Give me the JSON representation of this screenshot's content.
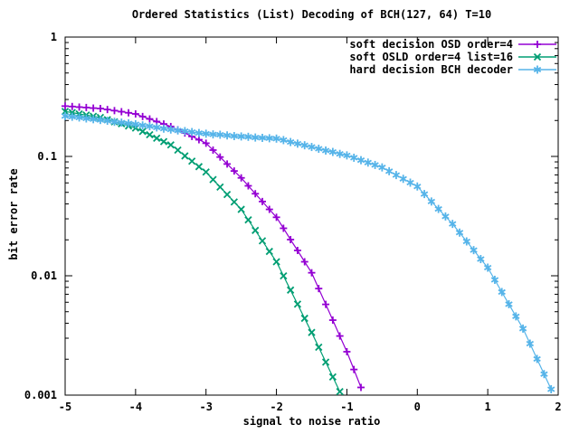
{
  "title": "Ordered Statistics (List) Decoding of BCH(127, 64) T=10",
  "x_axis": {
    "label": "signal to noise ratio",
    "ticks": [
      -5,
      -4,
      -3,
      -2,
      -1,
      0,
      1,
      2
    ]
  },
  "y_axis": {
    "label": "bit error rate",
    "scale": "log",
    "tick_values": [
      1,
      0.1,
      0.01,
      0.001
    ],
    "tick_labels": [
      "1",
      "0.1",
      "0.01",
      "0.001"
    ]
  },
  "legend": {
    "position": "top-right-inside",
    "entries": [
      {
        "label": "soft decision OSD order=4",
        "marker": "plus",
        "color": "#9400d3"
      },
      {
        "label": "soft OSLD order=4 list=16",
        "marker": "cross",
        "color": "#009e73"
      },
      {
        "label": "hard decision BCH decoder",
        "marker": "asterisk",
        "color": "#56b4e9"
      }
    ]
  },
  "colors": {
    "background": "#ffffff",
    "border": "#000000",
    "text": "#000000",
    "series1": "#9400d3",
    "series2": "#009e73",
    "series3": "#56b4e9"
  },
  "chart_data": {
    "type": "line",
    "title": "Ordered Statistics (List) Decoding of BCH(127, 64) T=10",
    "xlabel": "signal to noise ratio",
    "ylabel": "bit error rate",
    "xlim": [
      -5,
      2
    ],
    "ylim": [
      0.001,
      1
    ],
    "y_scale": "log",
    "grid": false,
    "legend_position": "top-right-inside",
    "x_start": -5.0,
    "x_step": 0.1,
    "series": [
      {
        "name": "soft decision OSD order=4",
        "color": "#9400d3",
        "marker": "plus",
        "values": [
          0.264,
          0.262,
          0.259,
          0.257,
          0.254,
          0.252,
          0.247,
          0.242,
          0.237,
          0.232,
          0.227,
          0.216,
          0.206,
          0.196,
          0.187,
          0.178,
          0.167,
          0.157,
          0.147,
          0.138,
          0.129,
          0.113,
          0.0988,
          0.0864,
          0.0755,
          0.0661,
          0.0567,
          0.0487,
          0.0419,
          0.036,
          0.0309,
          0.025,
          0.0201,
          0.0163,
          0.0131,
          0.0106,
          0.00781,
          0.00576,
          0.00425,
          0.00313,
          0.00231,
          0.00164,
          0.00116
        ]
      },
      {
        "name": "soft OSLD order=4 list=16",
        "color": "#009e73",
        "marker": "cross",
        "values": [
          0.238,
          0.233,
          0.227,
          0.222,
          0.217,
          0.212,
          0.203,
          0.195,
          0.188,
          0.18,
          0.173,
          0.162,
          0.152,
          0.142,
          0.133,
          0.125,
          0.113,
          0.101,
          0.0912,
          0.0821,
          0.074,
          0.064,
          0.0554,
          0.048,
          0.0415,
          0.036,
          0.0294,
          0.024,
          0.0196,
          0.016,
          0.0131,
          0.00997,
          0.00759,
          0.00578,
          0.0044,
          0.00335,
          0.00252,
          0.00189,
          0.00142,
          0.00107
        ]
      },
      {
        "name": "hard decision BCH decoder",
        "color": "#56b4e9",
        "marker": "asterisk",
        "values": [
          0.218,
          0.215,
          0.212,
          0.208,
          0.205,
          0.202,
          0.199,
          0.195,
          0.192,
          0.189,
          0.186,
          0.182,
          0.179,
          0.175,
          0.171,
          0.168,
          0.165,
          0.163,
          0.16,
          0.157,
          0.155,
          0.153,
          0.152,
          0.15,
          0.148,
          0.147,
          0.146,
          0.144,
          0.143,
          0.142,
          0.141,
          0.137,
          0.132,
          0.128,
          0.124,
          0.12,
          0.116,
          0.112,
          0.109,
          0.105,
          0.102,
          0.0975,
          0.093,
          0.0888,
          0.0848,
          0.0809,
          0.0752,
          0.0698,
          0.0649,
          0.0603,
          0.056,
          0.0484,
          0.0419,
          0.0363,
          0.0314,
          0.0272,
          0.023,
          0.0194,
          0.0164,
          0.0138,
          0.0117,
          0.00925,
          0.00731,
          0.00578,
          0.00457,
          0.00361,
          0.0027,
          0.00201,
          0.0015,
          0.00112
        ]
      }
    ]
  }
}
